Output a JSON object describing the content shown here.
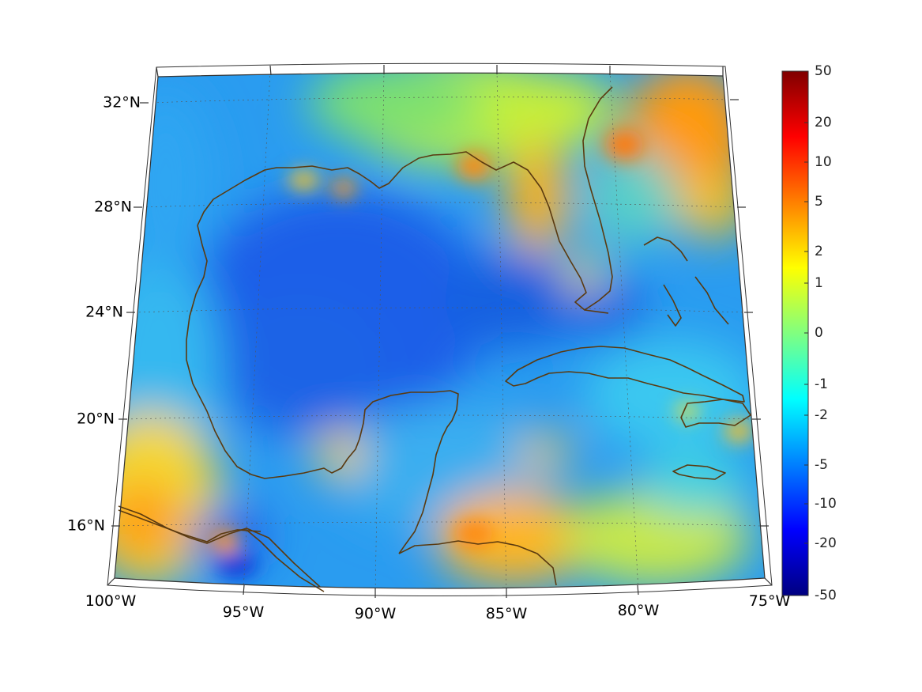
{
  "map": {
    "latitude_labels": [
      "32°N",
      "28°N",
      "24°N",
      "20°N",
      "16°N"
    ],
    "longitude_labels": [
      "100°W",
      "95°W",
      "90°W",
      "85°W",
      "80°W",
      "75°W"
    ],
    "grid": true,
    "coastline_color": "#5a3a10",
    "projection": "conic"
  },
  "colorbar": {
    "labels": [
      "50",
      "20",
      "10",
      "5",
      "2",
      "1",
      "0",
      "-1",
      "-2",
      "-5",
      "-10",
      "-20",
      "-50"
    ],
    "colormap": "jet",
    "placement": "right"
  }
}
